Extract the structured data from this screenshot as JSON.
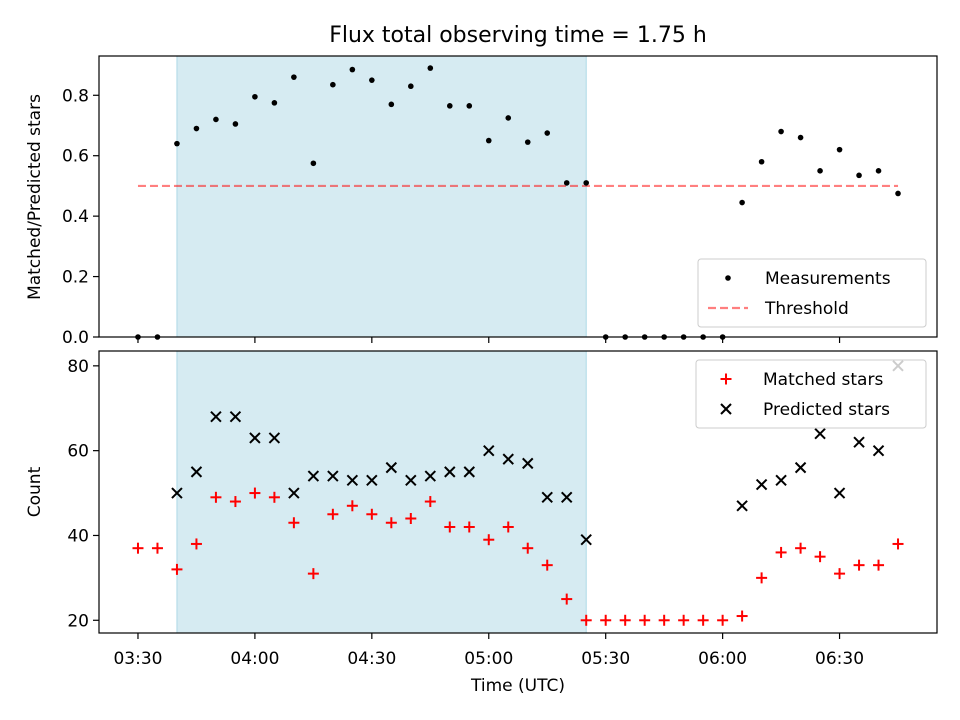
{
  "title": "Flux total observing time = 1.75 h",
  "colors": {
    "shade": "#add8e6",
    "threshold": "#ff0000",
    "measurement": "#000000",
    "matched": "#ff0000",
    "predicted": "#000000"
  },
  "chart_data": [
    {
      "type": "scatter",
      "ylabel": "Matched/Predicted stars",
      "xlabel": "",
      "ylim": [
        0,
        0.93
      ],
      "yticks": [
        "0.0",
        "0.2",
        "0.4",
        "0.6",
        "0.8"
      ],
      "shaded_interval": {
        "x_start": "03:40",
        "x_end": "05:25"
      },
      "threshold": {
        "label": "Threshold",
        "value": 0.5,
        "x_start": "03:30",
        "x_end": "06:45"
      },
      "legend": {
        "placement": "lower right",
        "entries": [
          "Measurements",
          "Threshold"
        ]
      },
      "series": [
        {
          "name": "Measurements",
          "x": [
            "03:30",
            "03:35",
            "03:40",
            "03:45",
            "03:50",
            "03:55",
            "04:00",
            "04:05",
            "04:10",
            "04:15",
            "04:20",
            "04:25",
            "04:30",
            "04:35",
            "04:40",
            "04:45",
            "04:50",
            "04:55",
            "05:00",
            "05:05",
            "05:10",
            "05:15",
            "05:20",
            "05:25",
            "05:30",
            "05:35",
            "05:40",
            "05:45",
            "05:50",
            "05:55",
            "06:00",
            "06:05",
            "06:10",
            "06:15",
            "06:20",
            "06:25",
            "06:30",
            "06:35",
            "06:40",
            "06:45"
          ],
          "y": [
            0,
            0,
            0.64,
            0.69,
            0.72,
            0.705,
            0.795,
            0.775,
            0.86,
            0.575,
            0.835,
            0.885,
            0.85,
            0.77,
            0.83,
            0.89,
            0.765,
            0.765,
            0.65,
            0.725,
            0.645,
            0.675,
            0.51,
            0.51,
            0,
            0,
            0,
            0,
            0,
            0,
            0,
            0.445,
            0.58,
            0.68,
            0.66,
            0.55,
            0.62,
            0.535,
            0.55,
            0.475
          ]
        }
      ]
    },
    {
      "type": "scatter",
      "ylabel": "Count",
      "xlabel": "Time (UTC)",
      "ylim": [
        17,
        83.5
      ],
      "yticks": [
        "20",
        "40",
        "60",
        "80"
      ],
      "xticks": [
        "03:30",
        "04:00",
        "04:30",
        "05:00",
        "05:30",
        "06:00",
        "06:30"
      ],
      "xlim": [
        "03:20",
        "06:55"
      ],
      "shaded_interval": {
        "x_start": "03:40",
        "x_end": "05:25"
      },
      "legend": {
        "placement": "upper right",
        "entries": [
          "Matched stars",
          "Predicted stars"
        ]
      },
      "series": [
        {
          "name": "Matched stars",
          "x": [
            "03:30",
            "03:35",
            "03:40",
            "03:45",
            "03:50",
            "03:55",
            "04:00",
            "04:05",
            "04:10",
            "04:15",
            "04:20",
            "04:25",
            "04:30",
            "04:35",
            "04:40",
            "04:45",
            "04:50",
            "04:55",
            "05:00",
            "05:05",
            "05:10",
            "05:15",
            "05:20",
            "05:25",
            "05:30",
            "05:35",
            "05:40",
            "05:45",
            "05:50",
            "05:55",
            "06:00",
            "06:05",
            "06:10",
            "06:15",
            "06:20",
            "06:25",
            "06:30",
            "06:35",
            "06:40",
            "06:45"
          ],
          "y": [
            37,
            37,
            32,
            38,
            49,
            48,
            50,
            49,
            43,
            31,
            45,
            47,
            45,
            43,
            44,
            48,
            42,
            42,
            39,
            42,
            37,
            33,
            25,
            20,
            20,
            20,
            20,
            20,
            20,
            20,
            20,
            21,
            30,
            36,
            37,
            35,
            31,
            33,
            33,
            38
          ]
        },
        {
          "name": "Predicted stars",
          "x": [
            "03:40",
            "03:45",
            "03:50",
            "03:55",
            "04:00",
            "04:05",
            "04:10",
            "04:15",
            "04:20",
            "04:25",
            "04:30",
            "04:35",
            "04:40",
            "04:45",
            "04:50",
            "04:55",
            "05:00",
            "05:05",
            "05:10",
            "05:15",
            "05:20",
            "05:25",
            "06:05",
            "06:10",
            "06:15",
            "06:20",
            "06:25",
            "06:30",
            "06:35",
            "06:40",
            "06:45"
          ],
          "y": [
            50,
            55,
            68,
            68,
            63,
            63,
            50,
            54,
            54,
            53,
            53,
            56,
            53,
            54,
            55,
            55,
            60,
            58,
            57,
            49,
            49,
            39,
            47,
            52,
            53,
            56,
            64,
            50,
            62,
            60,
            80
          ]
        }
      ]
    }
  ]
}
